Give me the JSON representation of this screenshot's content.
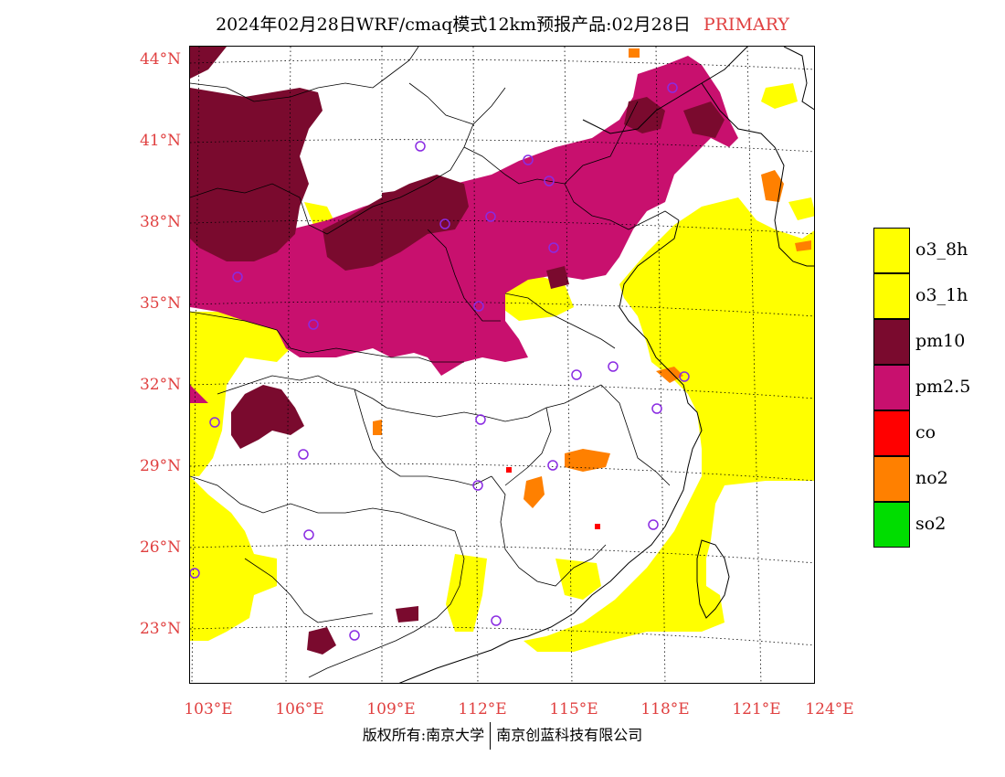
{
  "title": {
    "text": "2024年02月28日WRF/cmaq模式12km预报产品:02月28日",
    "tag": "PRIMARY"
  },
  "axes": {
    "lat_labels": [
      "44°N",
      "41°N",
      "38°N",
      "35°N",
      "32°N",
      "29°N",
      "26°N",
      "23°N"
    ],
    "lon_labels": [
      "103°E",
      "106°E",
      "109°E",
      "112°E",
      "115°E",
      "118°E",
      "121°E",
      "124°E"
    ]
  },
  "legend": [
    {
      "label": "o3_8h",
      "color": "#ffff00"
    },
    {
      "label": "o3_1h",
      "color": "#ffff00"
    },
    {
      "label": "pm10",
      "color": "#7a0a2e"
    },
    {
      "label": "pm2.5",
      "color": "#c8106e"
    },
    {
      "label": "co",
      "color": "#ff0000"
    },
    {
      "label": "no2",
      "color": "#ff8000"
    },
    {
      "label": "so2",
      "color": "#00dd00"
    }
  ],
  "copyright": {
    "left": "版权所有:南京大学",
    "right": "南京创蓝科技有限公司"
  },
  "map": {
    "extent": {
      "lon_min": 103,
      "lon_max": 124,
      "lat_min": 22,
      "lat_max": 44
    },
    "pollutant_fill": {
      "o3": "#ffff00",
      "pm10": "#7a0a2e",
      "pm25": "#c8106e",
      "no2": "#ff8000",
      "co": "#ff0000"
    },
    "border_color": "#000000",
    "gridline_color": "#000000",
    "station_marker_color": "#8a2be2"
  }
}
